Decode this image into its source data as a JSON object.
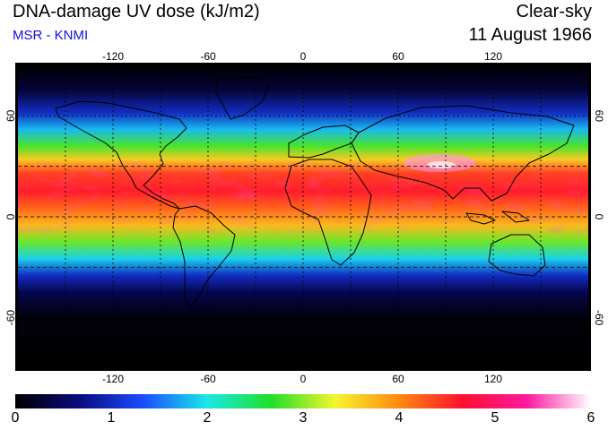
{
  "header": {
    "title": "DNA-damage UV dose (kJ/m2)",
    "subtitle": "MSR - KNMI",
    "condition": "Clear-sky",
    "date": "11 August 1966"
  },
  "map": {
    "longitude_ticks": [
      "-120",
      "-60",
      "0",
      "60",
      "120"
    ],
    "latitude_ticks": [
      "60",
      "0",
      "-60"
    ],
    "longitude_values": [
      -120,
      -60,
      0,
      60,
      120
    ],
    "latitude_values": [
      60,
      0,
      -60
    ],
    "lon_range": [
      -180,
      180
    ],
    "lat_range": [
      -90,
      90
    ],
    "gridlines": "dotted",
    "dashed_latitudes": [
      30,
      0,
      -30
    ],
    "field_note_bands": [
      {
        "lat": 90,
        "value": 0.0
      },
      {
        "lat": 75,
        "value": 0.3
      },
      {
        "lat": 62,
        "value": 1.0
      },
      {
        "lat": 52,
        "value": 1.8
      },
      {
        "lat": 42,
        "value": 2.8
      },
      {
        "lat": 34,
        "value": 3.6
      },
      {
        "lat": 26,
        "value": 4.4
      },
      {
        "lat": 15,
        "value": 4.6
      },
      {
        "lat": 5,
        "value": 4.2
      },
      {
        "lat": -5,
        "value": 3.7
      },
      {
        "lat": -15,
        "value": 2.9
      },
      {
        "lat": -25,
        "value": 1.9
      },
      {
        "lat": -35,
        "value": 1.0
      },
      {
        "lat": -45,
        "value": 0.4
      },
      {
        "lat": -60,
        "value": 0.05
      },
      {
        "lat": -90,
        "value": 0.0
      }
    ]
  },
  "colorbar": {
    "ticks": [
      "0",
      "1",
      "2",
      "3",
      "4",
      "5",
      "6"
    ],
    "range": [
      0,
      6
    ],
    "colors": [
      "#000000",
      "#0a0a80",
      "#1a4dff",
      "#19e8e8",
      "#1fe028",
      "#f5f530",
      "#ff8a10",
      "#ff1030",
      "#ff1aa0",
      "#ffffff"
    ]
  }
}
